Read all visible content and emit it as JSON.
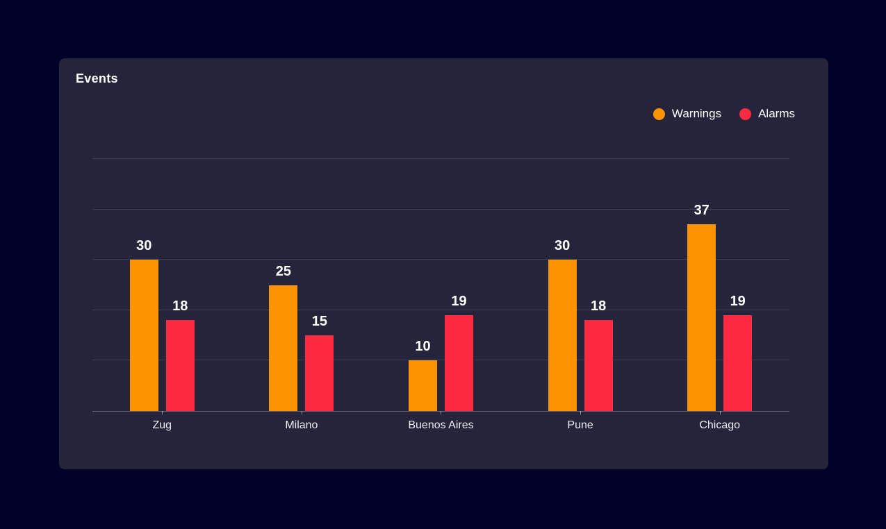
{
  "page": {
    "background": "#000028"
  },
  "card": {
    "background": "#24243A",
    "title": "Events"
  },
  "legend": [
    {
      "label": "Warnings",
      "color": "#FC9402"
    },
    {
      "label": "Alarms",
      "color": "#FC2B42"
    }
  ],
  "chart_data": {
    "type": "bar",
    "title": "Events",
    "categories": [
      "Zug",
      "Milano",
      "Buenos Aires",
      "Pune",
      "Chicago"
    ],
    "series": [
      {
        "name": "Warnings",
        "color": "#FC9402",
        "values": [
          30,
          25,
          10,
          30,
          37
        ]
      },
      {
        "name": "Alarms",
        "color": "#FC2B42",
        "values": [
          18,
          15,
          19,
          18,
          19
        ]
      }
    ],
    "xlabel": "",
    "ylabel": "",
    "ylim": [
      0,
      50
    ],
    "gridlines": [
      0,
      10,
      20,
      30,
      40,
      50
    ],
    "grid": "horizontal",
    "legend_position": "top-right",
    "value_labels": true
  }
}
